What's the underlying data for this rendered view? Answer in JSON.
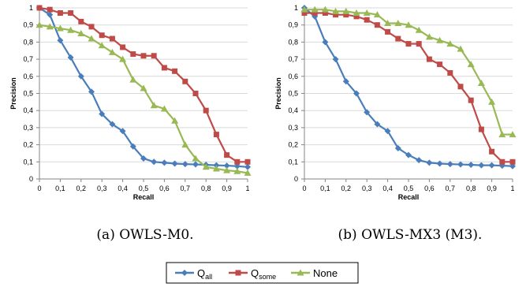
{
  "chart_data": [
    {
      "type": "line",
      "caption": "(a) OWLS-M0.",
      "xlabel": "Recall",
      "ylabel": "Precision",
      "xlim": [
        0,
        1
      ],
      "ylim": [
        0,
        1
      ],
      "x_ticks": [
        "0",
        "0,1",
        "0,2",
        "0,3",
        "0,4",
        "0,5",
        "0,6",
        "0,7",
        "0,8",
        "0,9",
        "1"
      ],
      "y_ticks": [
        "0",
        "0,1",
        "0,2",
        "0,3",
        "0,4",
        "0,5",
        "0,6",
        "0,7",
        "0,8",
        "0,9",
        "1"
      ],
      "grid": true,
      "x": [
        0,
        0.05,
        0.1,
        0.15,
        0.2,
        0.25,
        0.3,
        0.35,
        0.4,
        0.45,
        0.5,
        0.55,
        0.6,
        0.65,
        0.7,
        0.75,
        0.8,
        0.85,
        0.9,
        0.95,
        1
      ],
      "series": [
        {
          "name": "Q_all",
          "values": [
            1.0,
            0.96,
            0.81,
            0.71,
            0.6,
            0.51,
            0.38,
            0.32,
            0.28,
            0.19,
            0.12,
            0.1,
            0.095,
            0.09,
            0.087,
            0.085,
            0.083,
            0.08,
            0.078,
            0.075,
            0.07
          ]
        },
        {
          "name": "Q_some",
          "values": [
            1.0,
            0.99,
            0.97,
            0.97,
            0.92,
            0.89,
            0.84,
            0.82,
            0.77,
            0.73,
            0.72,
            0.72,
            0.65,
            0.63,
            0.57,
            0.5,
            0.4,
            0.26,
            0.14,
            0.1,
            0.1
          ]
        },
        {
          "name": "None",
          "values": [
            0.9,
            0.89,
            0.88,
            0.87,
            0.85,
            0.82,
            0.78,
            0.74,
            0.7,
            0.58,
            0.53,
            0.43,
            0.41,
            0.34,
            0.2,
            0.12,
            0.07,
            0.06,
            0.05,
            0.045,
            0.035
          ]
        }
      ]
    },
    {
      "type": "line",
      "caption": "(b) OWLS-MX3 (M3).",
      "xlabel": "Recall",
      "ylabel": "Precision",
      "xlim": [
        0,
        1
      ],
      "ylim": [
        0,
        1
      ],
      "x_ticks": [
        "0",
        "0,1",
        "0,2",
        "0,3",
        "0,4",
        "0,5",
        "0,6",
        "0,7",
        "0,8",
        "0,9",
        "1"
      ],
      "y_ticks": [
        "0",
        "0,1",
        "0,2",
        "0,3",
        "0,4",
        "0,5",
        "0,6",
        "0,7",
        "0,8",
        "0,9",
        "1"
      ],
      "grid": true,
      "x": [
        0,
        0.05,
        0.1,
        0.15,
        0.2,
        0.25,
        0.3,
        0.35,
        0.4,
        0.45,
        0.5,
        0.55,
        0.6,
        0.65,
        0.7,
        0.75,
        0.8,
        0.85,
        0.9,
        0.95,
        1
      ],
      "series": [
        {
          "name": "Q_all",
          "values": [
            1.0,
            0.95,
            0.8,
            0.7,
            0.57,
            0.5,
            0.39,
            0.32,
            0.28,
            0.18,
            0.14,
            0.11,
            0.095,
            0.09,
            0.087,
            0.085,
            0.083,
            0.08,
            0.08,
            0.078,
            0.075
          ]
        },
        {
          "name": "Q_some",
          "values": [
            0.97,
            0.97,
            0.97,
            0.96,
            0.96,
            0.95,
            0.93,
            0.9,
            0.86,
            0.82,
            0.79,
            0.79,
            0.7,
            0.67,
            0.62,
            0.54,
            0.46,
            0.29,
            0.16,
            0.1,
            0.1
          ]
        },
        {
          "name": "None",
          "values": [
            0.99,
            0.99,
            0.99,
            0.98,
            0.98,
            0.97,
            0.97,
            0.96,
            0.91,
            0.91,
            0.9,
            0.87,
            0.83,
            0.81,
            0.79,
            0.76,
            0.67,
            0.56,
            0.45,
            0.26,
            0.26
          ]
        }
      ]
    }
  ],
  "legend": {
    "items": [
      {
        "main": "Q",
        "sub": "all",
        "color": "#4a7ebb",
        "marker": "diamond"
      },
      {
        "main": "Q",
        "sub": "some",
        "color": "#be4b48",
        "marker": "square"
      },
      {
        "main": "None",
        "sub": "",
        "color": "#98b954",
        "marker": "triangle"
      }
    ]
  },
  "colors": {
    "q_all": "#4a7ebb",
    "q_some": "#be4b48",
    "none": "#98b954",
    "grid": "#d9d9d9",
    "axis": "#868686"
  }
}
